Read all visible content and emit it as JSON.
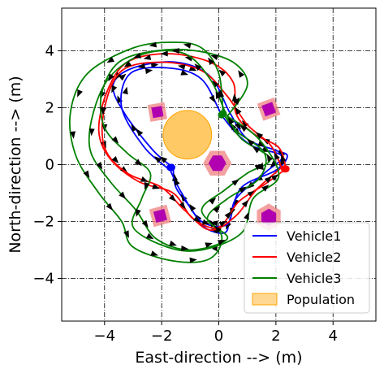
{
  "chart_data": {
    "type": "line",
    "title": "",
    "xlabel": "East-direction --> (m)",
    "ylabel": "North-direction --> (m)",
    "xlim": [
      -5.5,
      5.5
    ],
    "ylim": [
      -5.5,
      5.5
    ],
    "xticks": [
      -4,
      -2,
      0,
      2,
      4
    ],
    "yticks": [
      -4,
      -2,
      0,
      2,
      4
    ],
    "xtick_labels": [
      "−4",
      "−2",
      "0",
      "2",
      "4"
    ],
    "ytick_labels": [
      "−4",
      "−2",
      "0",
      "2",
      "4"
    ],
    "grid": true,
    "legend_position": "bottom-right",
    "legend": [
      {
        "label": "Vehicle1",
        "kind": "line",
        "color": "#0000ff"
      },
      {
        "label": "Vehicle2",
        "kind": "line",
        "color": "#ff0000"
      },
      {
        "label": "Vehicle3",
        "kind": "line",
        "color": "#008000"
      },
      {
        "label": "Population",
        "kind": "patch",
        "color": "#ffc04d"
      }
    ],
    "population": {
      "x": -1.1,
      "y": 1.05,
      "r": 0.85,
      "color": "#ffb733"
    },
    "obstacles": [
      {
        "shape": "square",
        "x": -2.15,
        "y": 1.85,
        "r": 0.42,
        "rot": 10,
        "outline": "#f08080",
        "fill": "#b000b0"
      },
      {
        "shape": "square",
        "x": 1.75,
        "y": 1.95,
        "r": 0.45,
        "rot": 20,
        "outline": "#f08080",
        "fill": "#b000b0"
      },
      {
        "shape": "hexagon",
        "x": -0.05,
        "y": 0.05,
        "r": 0.5,
        "rot": 0,
        "outline": "#f08080",
        "fill": "#b000b0"
      },
      {
        "shape": "square",
        "x": -2.05,
        "y": -1.8,
        "r": 0.45,
        "rot": 15,
        "outline": "#f08080",
        "fill": "#b000b0"
      },
      {
        "shape": "hexagon",
        "x": 1.75,
        "y": -1.85,
        "r": 0.48,
        "rot": 30,
        "outline": "#f08080",
        "fill": "#b000b0"
      }
    ],
    "series": [
      {
        "name": "Vehicle1",
        "color": "#0000ff",
        "paths": [
          [
            [
              -1.6,
              -0.1
            ],
            [
              -2.3,
              0.5
            ],
            [
              -3.3,
              1.8
            ],
            [
              -3.7,
              2.8
            ],
            [
              -3.0,
              3.4
            ],
            [
              -1.5,
              3.6
            ],
            [
              -0.3,
              3.1
            ],
            [
              0.4,
              1.8
            ],
            [
              1.0,
              0.9
            ],
            [
              2.0,
              0.5
            ],
            [
              2.4,
              0.3
            ],
            [
              2.0,
              -0.2
            ],
            [
              0.8,
              -0.8
            ],
            [
              0.4,
              -1.9
            ],
            [
              0.2,
              -2.4
            ],
            [
              -0.5,
              -2.2
            ],
            [
              -1.0,
              -1.5
            ],
            [
              -1.5,
              -0.8
            ],
            [
              -1.6,
              -0.1
            ]
          ],
          [
            [
              -1.7,
              -0.2
            ],
            [
              -2.6,
              0.6
            ],
            [
              -3.4,
              2.0
            ],
            [
              -3.1,
              3.2
            ],
            [
              -1.8,
              3.4
            ],
            [
              -0.6,
              3.0
            ],
            [
              0.2,
              1.6
            ],
            [
              1.1,
              0.7
            ],
            [
              2.2,
              0.3
            ],
            [
              1.6,
              -0.3
            ],
            [
              0.6,
              -1.2
            ],
            [
              0.3,
              -2.1
            ],
            [
              -0.6,
              -2.0
            ],
            [
              -1.3,
              -1.0
            ],
            [
              -1.7,
              -0.2
            ]
          ]
        ],
        "start": [
          -1.7,
          -0.1
        ],
        "end": [
          -1.65,
          -0.1
        ]
      },
      {
        "name": "Vehicle2",
        "color": "#ff0000",
        "paths": [
          [
            [
              2.35,
              -0.15
            ],
            [
              2.1,
              0.6
            ],
            [
              1.2,
              1.1
            ],
            [
              0.6,
              1.8
            ],
            [
              0.5,
              2.9
            ],
            [
              -0.3,
              3.6
            ],
            [
              -1.8,
              3.9
            ],
            [
              -3.2,
              3.6
            ],
            [
              -3.9,
              2.6
            ],
            [
              -4.2,
              1.2
            ],
            [
              -3.8,
              0.2
            ],
            [
              -2.8,
              -0.6
            ],
            [
              -1.6,
              -1.0
            ],
            [
              -0.9,
              -1.9
            ],
            [
              0.0,
              -2.2
            ],
            [
              0.7,
              -1.3
            ],
            [
              1.6,
              -0.7
            ],
            [
              2.35,
              -0.15
            ]
          ],
          [
            [
              2.2,
              -0.1
            ],
            [
              1.8,
              0.7
            ],
            [
              1.0,
              1.4
            ],
            [
              0.3,
              2.4
            ],
            [
              -0.6,
              3.3
            ],
            [
              -2.0,
              3.6
            ],
            [
              -3.4,
              3.3
            ],
            [
              -4.0,
              2.0
            ],
            [
              -4.0,
              0.6
            ],
            [
              -3.2,
              -0.3
            ],
            [
              -2.0,
              -0.8
            ],
            [
              -1.2,
              -1.6
            ],
            [
              -0.3,
              -2.3
            ],
            [
              0.6,
              -1.8
            ],
            [
              1.3,
              -0.9
            ],
            [
              2.2,
              -0.1
            ]
          ]
        ],
        "start": [
          2.35,
          -0.15
        ],
        "end": [
          2.3,
          -0.15
        ]
      },
      {
        "name": "Vehicle3",
        "color": "#008000",
        "paths": [
          [
            [
              0.15,
              1.8
            ],
            [
              0.0,
              3.2
            ],
            [
              -0.6,
              4.1
            ],
            [
              -1.6,
              4.3
            ],
            [
              -3.0,
              4.1
            ],
            [
              -4.6,
              3.2
            ],
            [
              -5.2,
              1.8
            ],
            [
              -5.0,
              0.3
            ],
            [
              -4.2,
              -1.0
            ],
            [
              -3.4,
              -2.0
            ],
            [
              -3.0,
              -2.9
            ],
            [
              -1.5,
              -3.4
            ],
            [
              -0.3,
              -3.3
            ],
            [
              0.1,
              -2.5
            ],
            [
              -0.6,
              -1.6
            ],
            [
              0.2,
              -0.9
            ],
            [
              1.0,
              -0.3
            ],
            [
              1.8,
              0.2
            ],
            [
              0.8,
              0.9
            ],
            [
              0.15,
              1.8
            ]
          ],
          [
            [
              0.2,
              1.9
            ],
            [
              -0.3,
              3.0
            ],
            [
              -1.2,
              3.9
            ],
            [
              -2.6,
              3.9
            ],
            [
              -3.8,
              3.1
            ],
            [
              -4.4,
              1.8
            ],
            [
              -4.5,
              0.5
            ],
            [
              -3.8,
              -0.6
            ],
            [
              -2.9,
              -1.6
            ],
            [
              -2.2,
              -2.6
            ],
            [
              -1.0,
              -3.0
            ],
            [
              0.3,
              -2.6
            ],
            [
              -0.4,
              -1.9
            ],
            [
              0.3,
              -1.2
            ],
            [
              1.4,
              -0.5
            ],
            [
              1.6,
              0.4
            ],
            [
              0.6,
              1.2
            ],
            [
              0.2,
              1.9
            ]
          ],
          [
            [
              0.3,
              1.7
            ],
            [
              1.0,
              2.8
            ],
            [
              0.5,
              3.6
            ],
            [
              -0.8,
              4.0
            ],
            [
              -2.2,
              4.0
            ],
            [
              -3.5,
              3.6
            ],
            [
              -4.1,
              2.5
            ],
            [
              -4.0,
              1.3
            ],
            [
              -3.2,
              0.4
            ],
            [
              -2.4,
              -0.3
            ],
            [
              -2.7,
              -1.2
            ],
            [
              -3.0,
              -2.2
            ],
            [
              -1.8,
              -2.9
            ],
            [
              -0.6,
              -3.0
            ],
            [
              0.8,
              -2.4
            ],
            [
              1.2,
              -1.2
            ],
            [
              2.1,
              -0.4
            ],
            [
              1.4,
              0.9
            ],
            [
              0.3,
              1.7
            ]
          ]
        ],
        "start": [
          0.15,
          1.8
        ],
        "end": [
          0.1,
          1.75
        ]
      }
    ]
  }
}
